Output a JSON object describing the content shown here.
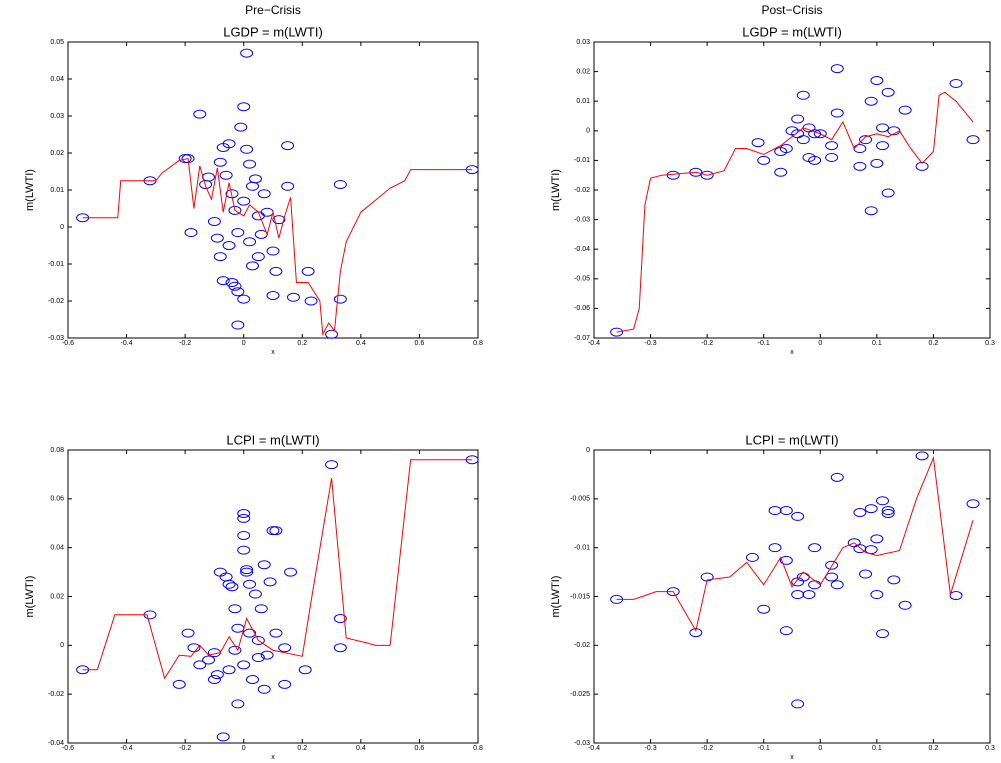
{
  "chart_data": [
    {
      "type": "scatter",
      "heading": "Pre−Crisis",
      "title": "LGDP = m(LWTI)",
      "xlabel": "x",
      "ylabel": "m(LWTI)",
      "xlim": [
        -0.6,
        0.8
      ],
      "xticks": [
        -0.6,
        -0.4,
        -0.2,
        0,
        0.2,
        0.4,
        0.6,
        0.8
      ],
      "ylim": [
        -0.03,
        0.05
      ],
      "yticks": [
        -0.03,
        -0.02,
        -0.01,
        0,
        0.01,
        0.02,
        0.03,
        0.04,
        0.05
      ],
      "series": [
        {
          "type": "scatter",
          "color": "#0000ff",
          "x": [
            -0.55,
            -0.32,
            -0.2,
            -0.19,
            -0.15,
            -0.18,
            -0.13,
            -0.12,
            -0.1,
            -0.09,
            -0.08,
            -0.07,
            -0.06,
            -0.05,
            -0.04,
            -0.03,
            -0.02,
            -0.01,
            0,
            0.01,
            0.01,
            0.02,
            0.03,
            0.04,
            0.05,
            -0.02,
            -0.07,
            -0.04,
            -0.03,
            0,
            -0.02,
            0.03,
            0.06,
            0.08,
            0.1,
            0.11,
            0.1,
            0.15,
            0.15,
            0.17,
            0.22,
            0.23,
            0.3,
            0.33,
            0.33,
            0.78,
            -0.05,
            0,
            0.07,
            0.12,
            -0.08,
            0.02,
            0.05
          ],
          "y": [
            0.0025,
            0.0125,
            0.0185,
            0.0185,
            0.0305,
            -0.0015,
            0.0115,
            0.0135,
            0.0015,
            -0.003,
            0.0175,
            0.0215,
            0.014,
            0.0225,
            0.009,
            0.0045,
            -0.0015,
            0.027,
            0.0325,
            0.047,
            0.021,
            0.017,
            0.011,
            0.013,
            0.003,
            -0.0265,
            -0.0145,
            -0.015,
            -0.016,
            -0.0195,
            -0.0175,
            -0.0105,
            -0.002,
            0.004,
            -0.0065,
            -0.012,
            -0.0185,
            0.022,
            0.011,
            -0.019,
            -0.012,
            -0.02,
            -0.029,
            -0.0195,
            0.0115,
            0.0155,
            -0.005,
            0.007,
            0.009,
            0.002,
            -0.008,
            -0.004,
            -0.008
          ]
        },
        {
          "type": "line",
          "color": "#ff0000",
          "x": [
            -0.55,
            -0.43,
            -0.42,
            -0.3,
            -0.28,
            -0.22,
            -0.19,
            -0.17,
            -0.15,
            -0.13,
            -0.11,
            -0.09,
            -0.07,
            -0.05,
            -0.03,
            0,
            0.02,
            0.05,
            0.08,
            0.1,
            0.12,
            0.14,
            0.16,
            0.18,
            0.22,
            0.26,
            0.27,
            0.29,
            0.31,
            0.33,
            0.35,
            0.4,
            0.5,
            0.55,
            0.57,
            0.78
          ],
          "y": [
            0.0025,
            0.0025,
            0.0125,
            0.0125,
            0.0145,
            0.018,
            0.0185,
            0.005,
            0.0165,
            0.011,
            0.0075,
            0.016,
            0.004,
            0.012,
            0.0045,
            0.003,
            0.006,
            0.004,
            -0.002,
            0.004,
            -0.003,
            0.003,
            0.008,
            -0.015,
            -0.015,
            -0.02,
            -0.029,
            -0.026,
            -0.028,
            -0.012,
            -0.004,
            0.004,
            0.0105,
            0.0125,
            0.0155,
            0.0155
          ]
        }
      ]
    },
    {
      "type": "scatter",
      "heading": "Post−Crisis",
      "title": "LGDP = m(LWTI)",
      "xlabel": "x",
      "ylabel": "m(LWTI)",
      "xlim": [
        -0.4,
        0.3
      ],
      "xticks": [
        -0.4,
        -0.3,
        -0.2,
        -0.1,
        0,
        0.1,
        0.2,
        0.3
      ],
      "ylim": [
        -0.07,
        0.03
      ],
      "yticks": [
        -0.07,
        -0.06,
        -0.05,
        -0.04,
        -0.03,
        -0.02,
        -0.01,
        0,
        0.01,
        0.02,
        0.03
      ],
      "series": [
        {
          "type": "scatter",
          "color": "#0000ff",
          "x": [
            -0.36,
            -0.26,
            -0.22,
            -0.2,
            -0.11,
            -0.1,
            -0.07,
            -0.06,
            -0.05,
            -0.04,
            -0.04,
            -0.03,
            -0.03,
            -0.02,
            -0.01,
            0,
            -0.07,
            -0.02,
            0.02,
            0.02,
            0.03,
            0.03,
            0.07,
            0.07,
            0.08,
            0.09,
            0.09,
            0.1,
            0.1,
            0.11,
            0.11,
            0.12,
            0.12,
            0.13,
            0.15,
            0.18,
            0.24,
            0.27,
            -0.01
          ],
          "y": [
            -0.068,
            -0.015,
            -0.014,
            -0.015,
            -0.004,
            -0.01,
            -0.007,
            -0.006,
            0,
            0.004,
            -0.001,
            0.012,
            -0.003,
            0.001,
            -0.001,
            -0.001,
            -0.014,
            -0.009,
            -0.009,
            -0.005,
            0.006,
            0.021,
            -0.006,
            -0.012,
            -0.003,
            0.01,
            -0.027,
            -0.011,
            0.017,
            0.001,
            -0.005,
            0.013,
            -0.021,
            0,
            0.007,
            -0.012,
            0.016,
            -0.003,
            -0.01
          ]
        },
        {
          "type": "line",
          "color": "#ff0000",
          "x": [
            -0.36,
            -0.33,
            -0.32,
            -0.31,
            -0.3,
            -0.28,
            -0.22,
            -0.2,
            -0.17,
            -0.15,
            -0.13,
            -0.1,
            -0.07,
            -0.05,
            -0.03,
            0,
            0.02,
            0.04,
            0.06,
            0.08,
            0.1,
            0.12,
            0.14,
            0.16,
            0.18,
            0.2,
            0.21,
            0.22,
            0.24,
            0.27
          ],
          "y": [
            -0.068,
            -0.067,
            -0.06,
            -0.025,
            -0.016,
            -0.015,
            -0.014,
            -0.015,
            -0.0135,
            -0.006,
            -0.006,
            -0.008,
            -0.005,
            -0.002,
            0.001,
            -0.001,
            -0.003,
            0.003,
            -0.006,
            -0.002,
            -0.001,
            -0.002,
            0,
            -0.006,
            -0.011,
            -0.007,
            0.012,
            0.013,
            0.01,
            0.003
          ]
        }
      ]
    },
    {
      "type": "scatter",
      "title": "LCPI = m(LWTI)",
      "xlabel": "x",
      "ylabel": "m(LWTI)",
      "xlim": [
        -0.6,
        0.8
      ],
      "xticks": [
        -0.6,
        -0.4,
        -0.2,
        0,
        0.2,
        0.4,
        0.6,
        0.8
      ],
      "ylim": [
        -0.04,
        0.08
      ],
      "yticks": [
        -0.04,
        -0.02,
        0,
        0.02,
        0.04,
        0.06,
        0.08
      ],
      "series": [
        {
          "type": "scatter",
          "color": "#0000ff",
          "x": [
            -0.55,
            -0.32,
            -0.22,
            -0.19,
            -0.17,
            -0.15,
            -0.12,
            -0.1,
            -0.09,
            -0.08,
            -0.07,
            -0.06,
            -0.05,
            -0.04,
            -0.03,
            -0.02,
            -0.02,
            0,
            0,
            0,
            0,
            0.01,
            0.01,
            0.02,
            0.04,
            0.05,
            0.06,
            0.07,
            0.07,
            0.09,
            0.1,
            0.11,
            0.11,
            0.14,
            0.16,
            0.14,
            0.21,
            0.3,
            0.33,
            0.33,
            0.78,
            -0.05,
            0,
            0.03,
            -0.1,
            0.05,
            0.08,
            -0.03,
            0.02
          ],
          "y": [
            -0.01,
            0.0125,
            -0.016,
            0.005,
            -0.001,
            -0.008,
            -0.006,
            -0.003,
            -0.012,
            0.03,
            -0.0375,
            0.028,
            0.025,
            0.024,
            0.015,
            -0.024,
            0.007,
            0.054,
            0.052,
            0.045,
            0.039,
            0.031,
            0.03,
            0.025,
            0.021,
            -0.005,
            0.015,
            0.033,
            -0.018,
            0.026,
            0.047,
            0.047,
            0.005,
            -0.001,
            0.03,
            -0.016,
            -0.01,
            0.074,
            0.011,
            -0.001,
            0.076,
            -0.01,
            -0.008,
            -0.014,
            -0.014,
            0.002,
            -0.004,
            -0.002,
            0.005
          ]
        },
        {
          "type": "line",
          "color": "#ff0000",
          "x": [
            -0.55,
            -0.5,
            -0.44,
            -0.33,
            -0.27,
            -0.22,
            -0.18,
            -0.15,
            -0.12,
            -0.08,
            -0.05,
            -0.02,
            0.01,
            0.05,
            0.1,
            0.2,
            0.23,
            0.3,
            0.35,
            0.42,
            0.45,
            0.5,
            0.57,
            0.78
          ],
          "y": [
            -0.01,
            -0.01,
            0.0125,
            0.0125,
            -0.0135,
            -0.004,
            -0.0045,
            0,
            -0.004,
            -0.003,
            0.0035,
            -0.002,
            0.011,
            0.002,
            -0.002,
            -0.0045,
            0.018,
            0.0685,
            0.003,
            0.001,
            0,
            0,
            0.076,
            0.076
          ]
        }
      ]
    },
    {
      "type": "scatter",
      "title": "LCPI = m(LWTI)",
      "xlabel": "x",
      "ylabel": "m(LWTI)",
      "xlim": [
        -0.4,
        0.3
      ],
      "xticks": [
        -0.4,
        -0.3,
        -0.2,
        -0.1,
        0,
        0.1,
        0.2,
        0.3
      ],
      "ylim": [
        -0.03,
        0
      ],
      "yticks": [
        -0.03,
        -0.025,
        -0.02,
        -0.015,
        -0.01,
        -0.005,
        0
      ],
      "series": [
        {
          "type": "scatter",
          "color": "#0000ff",
          "x": [
            -0.36,
            -0.26,
            -0.22,
            -0.2,
            -0.12,
            -0.1,
            -0.08,
            -0.08,
            -0.06,
            -0.06,
            -0.06,
            -0.04,
            -0.04,
            -0.04,
            -0.04,
            -0.03,
            -0.02,
            -0.01,
            -0.01,
            0.02,
            0.02,
            0.03,
            0.03,
            0.06,
            0.07,
            0.07,
            0.08,
            0.09,
            0.09,
            0.1,
            0.1,
            0.11,
            0.11,
            0.12,
            0.12,
            0.13,
            0.15,
            0.18,
            0.24,
            0.27
          ],
          "y": [
            -0.0153,
            -0.0145,
            -0.0187,
            -0.013,
            -0.011,
            -0.0163,
            -0.0062,
            -0.01,
            -0.0062,
            -0.0113,
            -0.0185,
            -0.0068,
            -0.0135,
            -0.0148,
            -0.026,
            -0.013,
            -0.0148,
            -0.01,
            -0.0138,
            -0.0118,
            -0.013,
            -0.0028,
            -0.0138,
            -0.0095,
            -0.0064,
            -0.0101,
            -0.0127,
            -0.006,
            -0.0102,
            -0.0148,
            -0.0091,
            -0.0052,
            -0.0188,
            -0.0062,
            -0.0065,
            -0.0133,
            -0.0159,
            -0.0006,
            -0.0149,
            -0.0055
          ]
        },
        {
          "type": "line",
          "color": "#ff0000",
          "x": [
            -0.36,
            -0.33,
            -0.29,
            -0.26,
            -0.22,
            -0.2,
            -0.16,
            -0.13,
            -0.1,
            -0.07,
            -0.05,
            -0.03,
            0,
            0.04,
            0.06,
            0.08,
            0.1,
            0.14,
            0.17,
            0.2,
            0.23,
            0.27
          ],
          "y": [
            -0.0153,
            -0.0153,
            -0.0145,
            -0.0145,
            -0.0185,
            -0.0133,
            -0.013,
            -0.0115,
            -0.0138,
            -0.011,
            -0.014,
            -0.0125,
            -0.0138,
            -0.01,
            -0.0095,
            -0.0105,
            -0.0108,
            -0.0103,
            -0.005,
            -0.0008,
            -0.0148,
            -0.0072
          ]
        }
      ]
    }
  ]
}
